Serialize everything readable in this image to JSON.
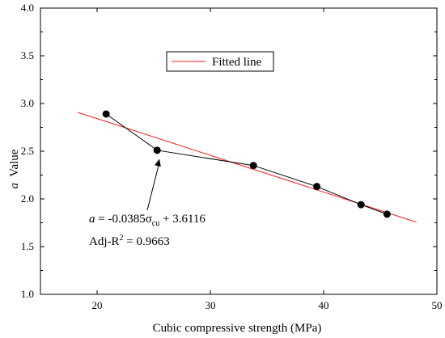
{
  "chart_data": {
    "type": "scatter",
    "xlabel": "Cubic compressive strength (MPa)",
    "ylabel_italic": "a",
    "ylabel_rest": "Value",
    "xlim": [
      15,
      50
    ],
    "ylim": [
      1.0,
      4.0
    ],
    "xticks": [
      20,
      30,
      40,
      50
    ],
    "yticks": [
      1.0,
      1.5,
      2.0,
      2.5,
      3.0,
      3.5,
      4.0
    ],
    "xtick_labels": [
      "20",
      "30",
      "40",
      "50"
    ],
    "ytick_labels": [
      "1.0",
      "1.5",
      "2.0",
      "2.5",
      "3.0",
      "3.5",
      "4.0"
    ],
    "grid": false,
    "legend_position": "top-center",
    "series": [
      {
        "type": "line+markers",
        "color": "#000000",
        "x": [
          20.8,
          25.3,
          33.8,
          39.4,
          43.3,
          45.6
        ],
        "y": [
          2.89,
          2.51,
          2.35,
          2.13,
          1.94,
          1.84
        ]
      },
      {
        "name": "Fitted line",
        "type": "line",
        "color": "#ff2020",
        "slope": -0.0385,
        "intercept": 3.6116,
        "x_range": [
          18.3,
          48.2
        ]
      }
    ],
    "annotation": {
      "eq_var": "a",
      "eq_mid": " = -0.0385σ",
      "eq_sub": "cu",
      "eq_tail": " + 3.6116",
      "r2_prefix": "Adj-R",
      "r2_sup": "2",
      "r2_tail": " = 0.9663",
      "arrow_target": [
        25.5,
        2.42
      ]
    }
  }
}
